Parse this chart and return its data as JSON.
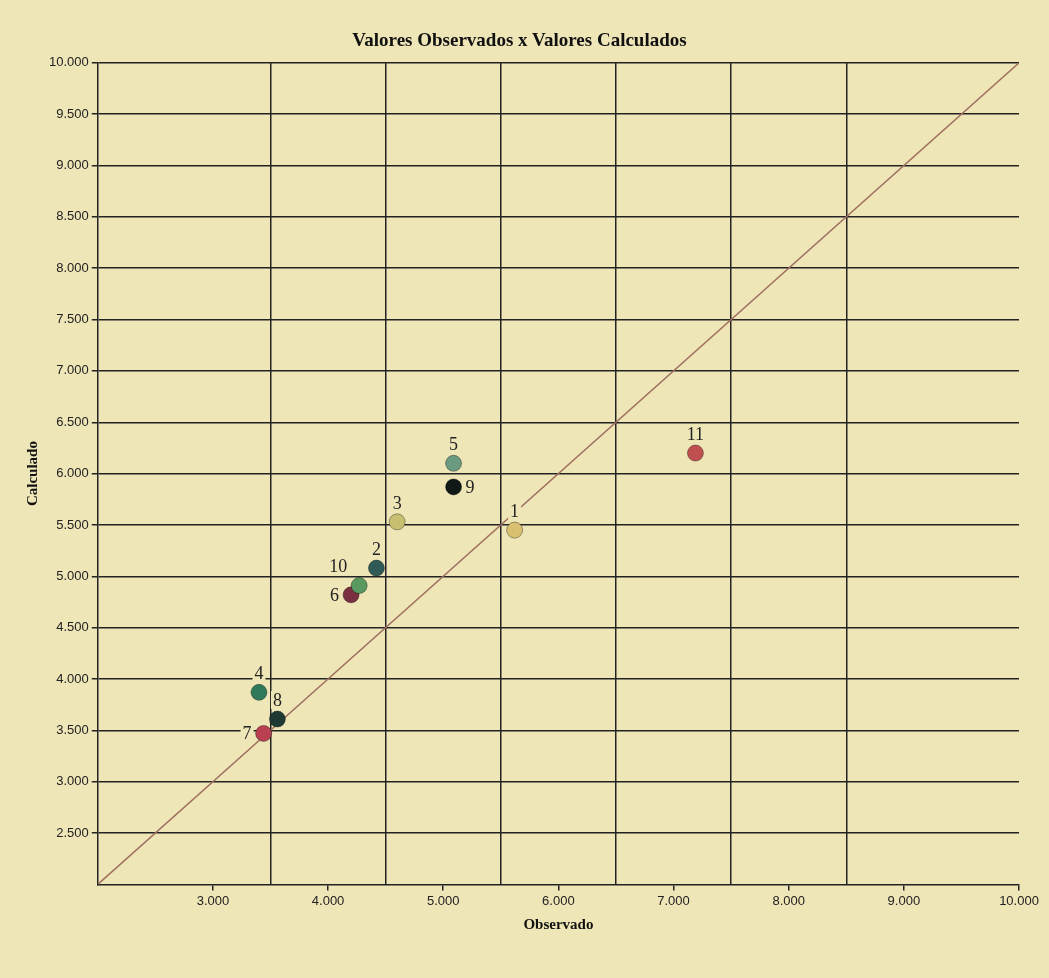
{
  "chart_data": {
    "type": "scatter",
    "title": "Valores Observados x Valores Calculados",
    "xlabel": "Observado",
    "ylabel": "Calculado",
    "xlim": [
      2000,
      10000
    ],
    "ylim": [
      2000,
      10000
    ],
    "xticks": [
      {
        "value": 3000,
        "label": "3.000"
      },
      {
        "value": 3500,
        "label": null
      },
      {
        "value": 4000,
        "label": "4.000"
      },
      {
        "value": 4500,
        "label": null
      },
      {
        "value": 5000,
        "label": "5.000"
      },
      {
        "value": 5500,
        "label": null
      },
      {
        "value": 6000,
        "label": "6.000"
      },
      {
        "value": 6500,
        "label": null
      },
      {
        "value": 7000,
        "label": "7.000"
      },
      {
        "value": 7500,
        "label": null
      },
      {
        "value": 8000,
        "label": "8.000"
      },
      {
        "value": 8500,
        "label": null
      },
      {
        "value": 9000,
        "label": "9.000"
      },
      {
        "value": 10000,
        "label": "10.000"
      }
    ],
    "yticks": [
      {
        "value": 2500,
        "label": "2.500"
      },
      {
        "value": 3000,
        "label": "3.000"
      },
      {
        "value": 3500,
        "label": "3.500"
      },
      {
        "value": 4000,
        "label": "4.000"
      },
      {
        "value": 4500,
        "label": "4.500"
      },
      {
        "value": 5000,
        "label": "5.000"
      },
      {
        "value": 5500,
        "label": "5.500"
      },
      {
        "value": 6000,
        "label": "6.000"
      },
      {
        "value": 6500,
        "label": "6.500"
      },
      {
        "value": 7000,
        "label": "7.000"
      },
      {
        "value": 7500,
        "label": "7.500"
      },
      {
        "value": 8000,
        "label": "8.000"
      },
      {
        "value": 8500,
        "label": "8.500"
      },
      {
        "value": 9000,
        "label": "9.000"
      },
      {
        "value": 9500,
        "label": "9.500"
      },
      {
        "value": 10000,
        "label": "10.000"
      }
    ],
    "grid": true,
    "legend": false,
    "series": [
      {
        "type": "scatter",
        "marker": "circle",
        "x": [
          5620,
          4420,
          4600,
          3400,
          5090,
          4200,
          3440,
          3560,
          5090,
          4270,
          7190
        ],
        "values": [
          5450,
          5080,
          5530,
          3870,
          6100,
          4820,
          3470,
          3610,
          5870,
          4910,
          6200
        ],
        "colors": [
          "#d8c070",
          "#2f5a55",
          "#c8c070",
          "#2f7a5a",
          "#6a9a80",
          "#7a3040",
          "#b84050",
          "#1f3a35",
          "#101818",
          "#5a9a60",
          "#c05050"
        ]
      },
      {
        "type": "line",
        "color": "#a07060",
        "x": [
          2000,
          10000
        ],
        "values": [
          2000,
          10000
        ]
      }
    ],
    "annotations": [
      {
        "text": "1",
        "x": 5620,
        "y": 5450
      },
      {
        "text": "2",
        "x": 4420,
        "y": 5080
      },
      {
        "text": "3",
        "x": 4600,
        "y": 5530
      },
      {
        "text": "4",
        "x": 3400,
        "y": 3870
      },
      {
        "text": "5",
        "x": 5090,
        "y": 6100
      },
      {
        "text": "6",
        "x": 4200,
        "y": 4820
      },
      {
        "text": "7",
        "x": 3440,
        "y": 3470
      },
      {
        "text": "8",
        "x": 3560,
        "y": 3610
      },
      {
        "text": "9",
        "x": 5090,
        "y": 5870
      },
      {
        "text": "10",
        "x": 4270,
        "y": 4910
      },
      {
        "text": "11",
        "x": 7190,
        "y": 6200
      }
    ]
  }
}
